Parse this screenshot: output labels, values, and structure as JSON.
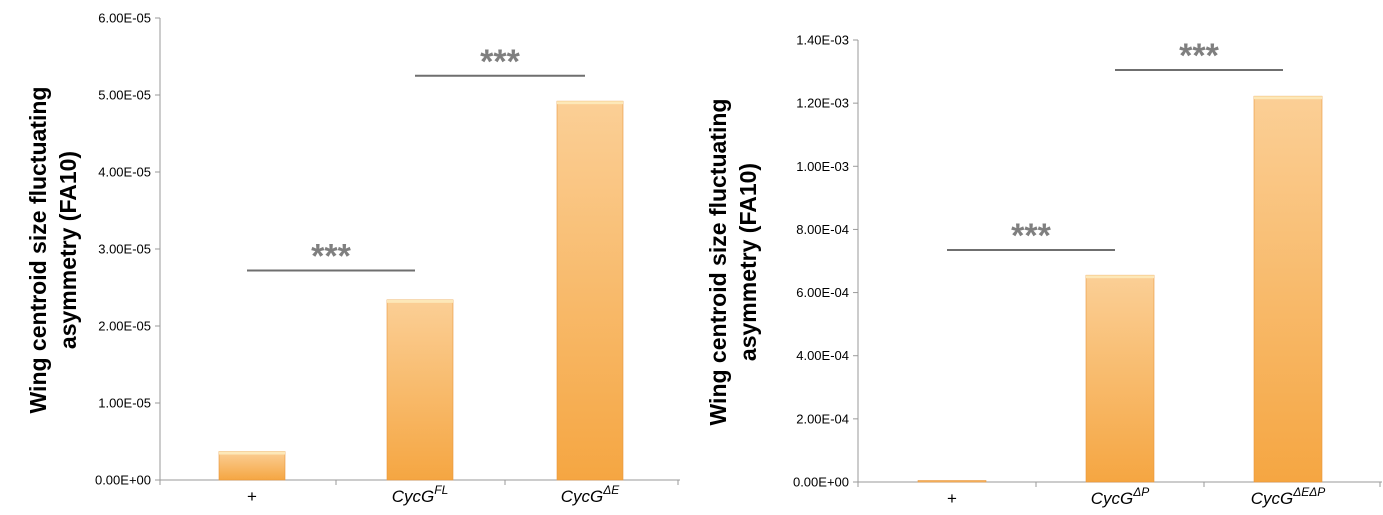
{
  "chart_data": [
    {
      "type": "bar",
      "ylabel": [
        "Wing centroid size fluctuating",
        "asymmetry (FA10)"
      ],
      "categories": [
        {
          "base": "+",
          "sup": ""
        },
        {
          "base": "CycG",
          "sup": "FL"
        },
        {
          "base": "CycG",
          "sup": "ΔE"
        }
      ],
      "values": [
        3.7e-06,
        2.34e-05,
        4.92e-05
      ],
      "ylim": [
        0,
        6e-05
      ],
      "yticks": [
        "0.00E+00",
        "1.00E-05",
        "2.00E-05",
        "3.00E-05",
        "4.00E-05",
        "5.00E-05",
        "6.00E-05"
      ],
      "ytick_values": [
        0,
        1e-05,
        2e-05,
        3e-05,
        4e-05,
        5e-05,
        6e-05
      ],
      "grid": false,
      "bar_color": "#f7b566",
      "significance": [
        {
          "from": 0,
          "to": 1,
          "y": 2.72e-05,
          "label": "***"
        },
        {
          "from": 1,
          "to": 2,
          "y": 5.25e-05,
          "label": "***"
        }
      ]
    },
    {
      "type": "bar",
      "ylabel": [
        "Wing centroid size fluctuating",
        "asymmetry (FA10)"
      ],
      "categories": [
        {
          "base": "+",
          "sup": ""
        },
        {
          "base": "CycG",
          "sup": "ΔP"
        },
        {
          "base": "CycG",
          "sup": "ΔEΔP"
        }
      ],
      "values": [
        3e-06,
        0.000655,
        0.001222
      ],
      "ylim": [
        0,
        0.0014
      ],
      "yticks": [
        "0.00E+00",
        "2.00E-04",
        "4.00E-04",
        "6.00E-04",
        "8.00E-04",
        "1.00E-03",
        "1.20E-03",
        "1.40E-03"
      ],
      "ytick_values": [
        0,
        0.0002,
        0.0004,
        0.0006,
        0.0008,
        0.001,
        0.0012,
        0.0014
      ],
      "grid": false,
      "bar_color": "#f7b566",
      "significance": [
        {
          "from": 0,
          "to": 1,
          "y": 0.000735,
          "label": "***"
        },
        {
          "from": 1,
          "to": 2,
          "y": 0.001305,
          "label": "***"
        }
      ]
    }
  ]
}
